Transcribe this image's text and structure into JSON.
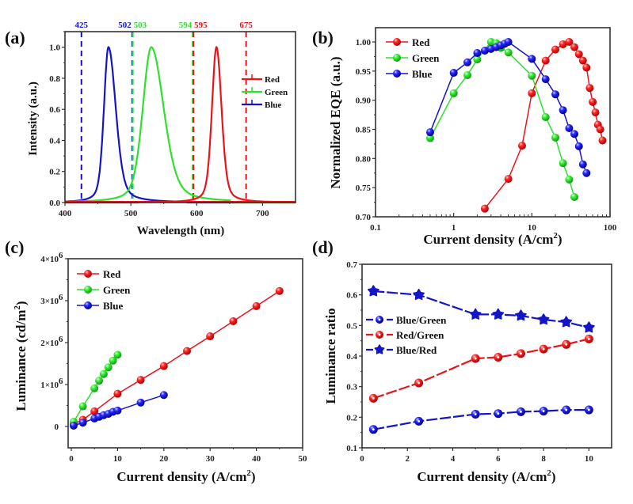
{
  "colors": {
    "red": "#e8141c",
    "green": "#2fe02f",
    "blue": "#1414c8",
    "axis": "#333333"
  },
  "chart_data": [
    {
      "panel": "a",
      "type": "line",
      "panel_label": "(a)",
      "title": "",
      "xlabel": "Wavelength (nm)",
      "ylabel": "Intensity (a.u.)",
      "xlim": [
        400,
        750
      ],
      "ylim": [
        0,
        1.1
      ],
      "xticks": [
        400,
        500,
        600,
        700
      ],
      "xtick_labels": [
        "400",
        "500",
        "600",
        "700"
      ],
      "yticks": [
        0,
        0.2,
        0.4,
        0.6,
        0.8,
        1.0
      ],
      "ytick_labels": [
        "0.0",
        "0.2",
        "0.4",
        "0.6",
        "0.8",
        "1.0"
      ],
      "legend": {
        "position": "right-center",
        "entries": [
          "Red",
          "Green",
          "Blue"
        ]
      },
      "series": [
        {
          "name": "Red",
          "color_key": "red",
          "peak_nm": 630,
          "fwhm_left": 8,
          "fwhm_right": 9,
          "peak": 1.0
        },
        {
          "name": "Green",
          "color_key": "green",
          "peak_nm": 531,
          "fwhm_left": 15,
          "fwhm_right": 22,
          "peak": 1.0
        },
        {
          "name": "Blue",
          "color_key": "blue",
          "peak_nm": 466,
          "fwhm_left": 8,
          "fwhm_right": 13,
          "peak": 1.0
        }
      ],
      "vertical_lines": [
        {
          "x": 425,
          "label": "425",
          "color_key": "blue"
        },
        {
          "x": 502,
          "label": "502",
          "color_key": "blue"
        },
        {
          "x": 503,
          "label": "503",
          "color_key": "green"
        },
        {
          "x": 594,
          "label": "594",
          "color_key": "green"
        },
        {
          "x": 595,
          "label": "595",
          "color_key": "red"
        },
        {
          "x": 675,
          "label": "675",
          "color_key": "red"
        }
      ]
    },
    {
      "panel": "b",
      "type": "line",
      "panel_label": "(b)",
      "title": "",
      "xlabel": "Current density (A/cm",
      "xlabel_sup": "2",
      "xlabel_end": ")",
      "ylabel": "Normalized EQE (a.u.)",
      "xscale": "log",
      "xlim": [
        0.1,
        100
      ],
      "ylim": [
        0.7,
        1.02
      ],
      "xticks": [
        0.1,
        1,
        10,
        100
      ],
      "xtick_labels": [
        "0.1",
        "1",
        "10",
        "100"
      ],
      "yticks": [
        0.7,
        0.75,
        0.8,
        0.85,
        0.9,
        0.95,
        1.0
      ],
      "ytick_labels": [
        "0.70",
        "0.75",
        "0.80",
        "0.85",
        "0.90",
        "0.95",
        "1.00"
      ],
      "legend": {
        "position": "top-left",
        "entries": [
          "Red",
          "Green",
          "Blue"
        ]
      },
      "series": [
        {
          "name": "Red",
          "color_key": "red",
          "x": [
            2.5,
            5,
            7.5,
            10,
            15,
            20,
            25,
            30,
            35,
            40,
            45,
            50,
            55,
            60,
            65,
            70,
            75,
            80
          ],
          "y": [
            0.714,
            0.765,
            0.822,
            0.912,
            0.968,
            0.987,
            0.996,
            1.0,
            0.991,
            0.979,
            0.968,
            0.956,
            0.921,
            0.897,
            0.879,
            0.858,
            0.85,
            0.831
          ]
        },
        {
          "name": "Green",
          "color_key": "green",
          "x": [
            0.5,
            1,
            1.5,
            2,
            3,
            3.5,
            4,
            5,
            10,
            15,
            20,
            25,
            30,
            35
          ],
          "y": [
            0.835,
            0.912,
            0.943,
            0.97,
            1.0,
            0.998,
            0.99,
            0.982,
            0.942,
            0.871,
            0.836,
            0.792,
            0.764,
            0.734
          ]
        },
        {
          "name": "Blue",
          "color_key": "blue",
          "x": [
            0.5,
            1,
            1.5,
            2,
            2.5,
            3,
            3.5,
            4,
            4.5,
            5,
            10,
            15,
            20,
            25,
            30,
            35,
            40,
            45,
            50
          ],
          "y": [
            0.845,
            0.947,
            0.965,
            0.981,
            0.985,
            0.988,
            0.991,
            0.994,
            0.997,
            1.0,
            0.971,
            0.936,
            0.91,
            0.883,
            0.852,
            0.842,
            0.821,
            0.79,
            0.775
          ]
        }
      ]
    },
    {
      "panel": "c",
      "type": "line",
      "panel_label": "(c)",
      "title": "",
      "xlabel": "Current density (A/cm",
      "xlabel_sup": "2",
      "xlabel_end": ")",
      "ylabel": "Luminance (cd/m",
      "ylabel_sup": "2",
      "ylabel_end": ")",
      "xlim": [
        -0.7,
        50
      ],
      "ylim": [
        -500000,
        4000000
      ],
      "xticks": [
        0,
        10,
        20,
        30,
        40,
        50
      ],
      "xtick_labels": [
        "0",
        "10",
        "20",
        "30",
        "40",
        "50"
      ],
      "yticks": [
        0,
        1000000,
        2000000,
        3000000,
        4000000
      ],
      "ytick_labels": [
        "0",
        "1×10",
        "2×10",
        "3×10",
        "4×10"
      ],
      "ytick_sup": [
        "",
        "6",
        "6",
        "6",
        "6"
      ],
      "legend": {
        "position": "top-left",
        "entries": [
          "Red",
          "Green",
          "Blue"
        ]
      },
      "series": [
        {
          "name": "Red",
          "color_key": "red",
          "x": [
            0.5,
            2.5,
            5,
            10,
            15,
            20,
            25,
            30,
            35,
            40,
            45
          ],
          "y": [
            60000,
            160000,
            360000,
            780000,
            1110000,
            1440000,
            1800000,
            2150000,
            2510000,
            2870000,
            3230000
          ]
        },
        {
          "name": "Green",
          "color_key": "green",
          "x": [
            0.5,
            2.5,
            5,
            6,
            7,
            8,
            9,
            10
          ],
          "y": [
            110000,
            480000,
            910000,
            1090000,
            1250000,
            1410000,
            1570000,
            1710000
          ]
        },
        {
          "name": "Blue",
          "color_key": "blue",
          "x": [
            0.5,
            2.5,
            5,
            6,
            7,
            8,
            9,
            10,
            15,
            20
          ],
          "y": [
            20000,
            90000,
            190000,
            230000,
            270000,
            300000,
            350000,
            380000,
            570000,
            750000
          ]
        }
      ]
    },
    {
      "panel": "d",
      "type": "line",
      "panel_label": "(d)",
      "title": "",
      "xlabel": "Current density (A/cm",
      "xlabel_sup": "2",
      "xlabel_end": ")",
      "ylabel": "Luminance ratio",
      "xlim": [
        0,
        11
      ],
      "ylim": [
        0.1,
        0.7
      ],
      "xticks": [
        0,
        2,
        4,
        6,
        8,
        10
      ],
      "xtick_labels": [
        "0",
        "2",
        "4",
        "6",
        "8",
        "10"
      ],
      "yticks": [
        0.1,
        0.2,
        0.3,
        0.4,
        0.5,
        0.6,
        0.7
      ],
      "ytick_labels": [
        "0.1",
        "0.2",
        "0.3",
        "0.4",
        "0.5",
        "0.6",
        "0.7"
      ],
      "legend": {
        "position": "left-center",
        "entries": [
          "Blue/Green",
          "Red/Green",
          "Blue/Red"
        ]
      },
      "series": [
        {
          "name": "Blue/Green",
          "color_key": "blue",
          "marker": "circle-dot",
          "x": [
            0.5,
            2.5,
            5,
            6,
            7,
            8,
            9,
            10
          ],
          "y": [
            0.16,
            0.187,
            0.21,
            0.212,
            0.218,
            0.22,
            0.224,
            0.224
          ]
        },
        {
          "name": "Red/Green",
          "color_key": "red",
          "marker": "circle-dot",
          "x": [
            0.5,
            2.5,
            5,
            6,
            7,
            8,
            9,
            10
          ],
          "y": [
            0.262,
            0.312,
            0.392,
            0.396,
            0.408,
            0.423,
            0.438,
            0.456
          ]
        },
        {
          "name": "Blue/Red",
          "color_key": "blue",
          "marker": "star",
          "x": [
            0.5,
            2.5,
            5,
            6,
            7,
            8,
            9,
            10
          ],
          "y": [
            0.612,
            0.6,
            0.536,
            0.536,
            0.532,
            0.519,
            0.511,
            0.493
          ]
        }
      ]
    }
  ]
}
